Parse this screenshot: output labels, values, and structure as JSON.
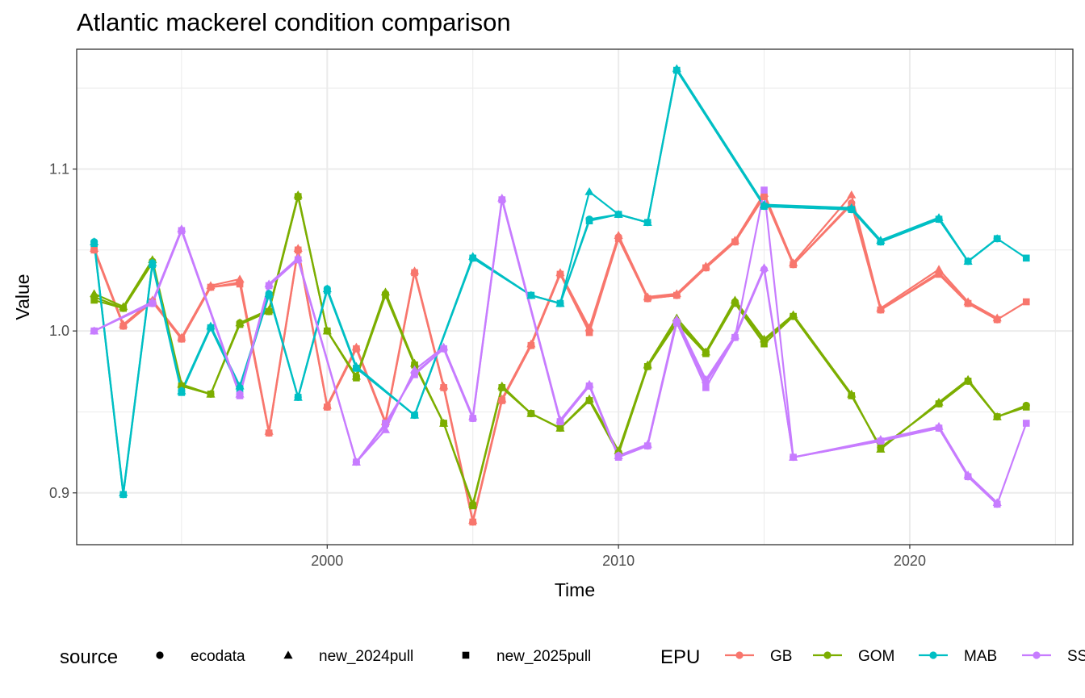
{
  "chart_data": {
    "type": "line",
    "title": "Atlantic mackerel condition comparison",
    "xlabel": "Time",
    "ylabel": "Value",
    "xlim": [
      1991.4,
      2025.6
    ],
    "ylim": [
      0.868,
      1.174
    ],
    "x_ticks": [
      2000,
      2010,
      2020
    ],
    "x_tick_labels": [
      "2000",
      "2010",
      "2020"
    ],
    "y_ticks": [
      0.9,
      1.0,
      1.1
    ],
    "y_tick_labels": [
      "0.9",
      "1.0",
      "1.1"
    ],
    "grid": true,
    "legend_position": "bottom",
    "legend_source": {
      "title": "source",
      "entries": [
        {
          "label": "ecodata",
          "shape": "circle"
        },
        {
          "label": "new_2024pull",
          "shape": "triangle"
        },
        {
          "label": "new_2025pull",
          "shape": "square"
        }
      ]
    },
    "legend_epu": {
      "title": "EPU",
      "entries": [
        {
          "label": "GB",
          "color": "#F8766D"
        },
        {
          "label": "GOM",
          "color": "#7CAE00"
        },
        {
          "label": "MAB",
          "color": "#00BFC4"
        },
        {
          "label": "SS",
          "color": "#C77CFF"
        }
      ]
    },
    "series": [
      {
        "name": "GB",
        "source": "ecodata",
        "color": "#F8766D",
        "shape": "circle",
        "x": [
          1992,
          1993,
          1994,
          1995,
          1996,
          1997,
          1998,
          1999,
          2000,
          2001,
          2002,
          2003,
          2004,
          2005,
          2006,
          2007,
          2008,
          2009,
          2010,
          2011,
          2012,
          2013,
          2014,
          2015,
          2016,
          2018,
          2019,
          2021,
          2022,
          2023
        ],
        "y": [
          1.05,
          1.003,
          1.018,
          0.995,
          1.027,
          1.03,
          0.937,
          1.05,
          0.953,
          0.989,
          0.943,
          1.036,
          0.965,
          0.882,
          0.957,
          0.991,
          1.035,
          1.0,
          1.058,
          1.02,
          1.022,
          1.039,
          1.055,
          1.083,
          1.041,
          1.079,
          1.013,
          1.036,
          1.017,
          1.007
        ]
      },
      {
        "name": "GB",
        "source": "new_2024pull",
        "color": "#F8766D",
        "shape": "triangle",
        "x": [
          1992,
          1993,
          1994,
          1995,
          1996,
          1997,
          1998,
          1999,
          2000,
          2001,
          2002,
          2003,
          2004,
          2005,
          2006,
          2007,
          2008,
          2009,
          2010,
          2011,
          2012,
          2013,
          2014,
          2015,
          2016,
          2018,
          2019,
          2021,
          2022,
          2023
        ],
        "y": [
          1.051,
          1.004,
          1.019,
          0.996,
          1.028,
          1.032,
          0.938,
          1.051,
          0.954,
          0.99,
          0.944,
          1.037,
          0.966,
          0.883,
          0.958,
          0.992,
          1.036,
          1.002,
          1.059,
          1.021,
          1.023,
          1.04,
          1.056,
          1.085,
          1.042,
          1.084,
          1.014,
          1.038,
          1.018,
          1.008
        ]
      },
      {
        "name": "GB",
        "source": "new_2025pull",
        "color": "#F8766D",
        "shape": "square",
        "x": [
          1992,
          1993,
          1994,
          1995,
          1996,
          1997,
          1998,
          1999,
          2000,
          2001,
          2002,
          2003,
          2004,
          2005,
          2006,
          2007,
          2008,
          2009,
          2010,
          2011,
          2012,
          2013,
          2014,
          2015,
          2016,
          2018,
          2019,
          2021,
          2022,
          2023,
          2024
        ],
        "y": [
          1.05,
          1.003,
          1.018,
          0.995,
          1.027,
          1.029,
          0.937,
          1.05,
          0.953,
          0.989,
          0.943,
          1.036,
          0.965,
          0.882,
          0.957,
          0.991,
          1.035,
          0.999,
          1.057,
          1.02,
          1.022,
          1.039,
          1.055,
          1.083,
          1.041,
          1.078,
          1.013,
          1.035,
          1.017,
          1.007,
          1.018
        ]
      },
      {
        "name": "GOM",
        "source": "ecodata",
        "color": "#7CAE00",
        "shape": "circle",
        "x": [
          1992,
          1993,
          1994,
          1995,
          1996,
          1997,
          1998,
          1999,
          2000,
          2001,
          2002,
          2003,
          2004,
          2005,
          2006,
          2007,
          2008,
          2009,
          2010,
          2011,
          2012,
          2013,
          2014,
          2015,
          2016,
          2018,
          2019,
          2021,
          2022,
          2023,
          2024
        ],
        "y": [
          1.021,
          1.014,
          1.043,
          0.966,
          0.961,
          1.005,
          1.012,
          1.083,
          1.0,
          0.972,
          1.023,
          0.979,
          0.943,
          0.893,
          0.965,
          0.949,
          0.94,
          0.957,
          0.925,
          0.978,
          1.006,
          0.987,
          1.018,
          0.994,
          1.009,
          0.96,
          0.928,
          0.955,
          0.969,
          0.947,
          0.954
        ]
      },
      {
        "name": "GOM",
        "source": "new_2024pull",
        "color": "#7CAE00",
        "shape": "triangle",
        "x": [
          1992,
          1993,
          1994,
          1995,
          1996,
          1997,
          1998,
          1999,
          2000,
          2001,
          2002,
          2003,
          2004,
          2005,
          2006,
          2007,
          2008,
          2009,
          2010,
          2011,
          2012,
          2013,
          2014,
          2015,
          2016,
          2018,
          2019,
          2021,
          2022,
          2023
        ],
        "y": [
          1.023,
          1.015,
          1.044,
          0.967,
          0.961,
          1.005,
          1.013,
          1.084,
          1.0,
          0.972,
          1.024,
          0.98,
          0.943,
          0.893,
          0.966,
          0.949,
          0.94,
          0.958,
          0.926,
          0.979,
          1.008,
          0.987,
          1.019,
          0.995,
          1.01,
          0.961,
          0.927,
          0.956,
          0.97,
          0.947
        ]
      },
      {
        "name": "GOM",
        "source": "new_2025pull",
        "color": "#7CAE00",
        "shape": "square",
        "x": [
          1992,
          1993,
          1994,
          1995,
          1996,
          1997,
          1998,
          1999,
          2000,
          2001,
          2002,
          2003,
          2004,
          2005,
          2006,
          2007,
          2008,
          2009,
          2010,
          2011,
          2012,
          2013,
          2014,
          2015,
          2016,
          2018,
          2019,
          2021,
          2022,
          2023,
          2024
        ],
        "y": [
          1.019,
          1.014,
          1.042,
          0.966,
          0.961,
          1.004,
          1.012,
          1.083,
          1.0,
          0.971,
          1.022,
          0.979,
          0.943,
          0.892,
          0.965,
          0.949,
          0.94,
          0.957,
          0.924,
          0.978,
          1.005,
          0.986,
          1.017,
          0.992,
          1.009,
          0.96,
          0.928,
          0.955,
          0.969,
          0.947,
          0.953
        ]
      },
      {
        "name": "MAB",
        "source": "ecodata",
        "color": "#00BFC4",
        "shape": "circle",
        "x": [
          1992,
          1993,
          1994,
          1995,
          1996,
          1997,
          1998,
          1999,
          2000,
          2001,
          2003,
          2005,
          2007,
          2008,
          2009,
          2010,
          2011,
          2012,
          2015,
          2018,
          2019,
          2021,
          2022,
          2023
        ],
        "y": [
          1.055,
          0.899,
          1.042,
          0.963,
          1.002,
          0.965,
          1.023,
          0.959,
          1.026,
          0.977,
          0.948,
          1.045,
          1.022,
          1.017,
          1.069,
          1.072,
          1.067,
          1.161,
          1.077,
          1.075,
          1.055,
          1.069,
          1.043,
          1.057
        ]
      },
      {
        "name": "MAB",
        "source": "new_2024pull",
        "color": "#00BFC4",
        "shape": "triangle",
        "x": [
          1992,
          1993,
          1994,
          1995,
          1996,
          1997,
          1998,
          1999,
          2000,
          2001,
          2003,
          2005,
          2007,
          2008,
          2009,
          2010,
          2011,
          2012,
          2015,
          2018,
          2019,
          2021,
          2022,
          2023
        ],
        "y": [
          1.055,
          0.9,
          1.042,
          0.963,
          1.003,
          0.966,
          1.023,
          0.959,
          1.026,
          0.978,
          0.948,
          1.046,
          1.022,
          1.017,
          1.086,
          1.072,
          1.067,
          1.162,
          1.078,
          1.076,
          1.056,
          1.07,
          1.043,
          1.057
        ]
      },
      {
        "name": "MAB",
        "source": "new_2025pull",
        "color": "#00BFC4",
        "shape": "square",
        "x": [
          1992,
          1993,
          1994,
          1995,
          1996,
          1997,
          1998,
          1999,
          2000,
          2001,
          2003,
          2005,
          2007,
          2008,
          2009,
          2010,
          2011,
          2012,
          2015,
          2018,
          2019,
          2021,
          2022,
          2023,
          2024
        ],
        "y": [
          1.054,
          0.899,
          1.041,
          0.962,
          1.002,
          0.964,
          1.022,
          0.959,
          1.025,
          0.977,
          0.948,
          1.045,
          1.022,
          1.017,
          1.068,
          1.072,
          1.067,
          1.161,
          1.077,
          1.075,
          1.055,
          1.069,
          1.043,
          1.057,
          1.045
        ]
      },
      {
        "name": "SS",
        "source": "ecodata",
        "color": "#C77CFF",
        "shape": "circle",
        "x": [
          1992,
          1994,
          1995,
          1997,
          1998,
          1999,
          2001,
          2002,
          2003,
          2004,
          2005,
          2006,
          2008,
          2009,
          2010,
          2011,
          2012,
          2013,
          2014,
          2015,
          2016,
          2019,
          2021,
          2022,
          2023
        ],
        "y": [
          1.0,
          1.017,
          1.062,
          0.961,
          1.028,
          1.044,
          0.919,
          0.942,
          0.974,
          0.989,
          0.946,
          1.081,
          0.944,
          0.966,
          0.923,
          0.929,
          1.006,
          0.968,
          0.996,
          1.038,
          0.922,
          0.932,
          0.94,
          0.91,
          0.893
        ]
      },
      {
        "name": "SS",
        "source": "new_2024pull",
        "color": "#C77CFF",
        "shape": "triangle",
        "x": [
          1992,
          1994,
          1995,
          1997,
          1998,
          1999,
          2001,
          2002,
          2003,
          2004,
          2005,
          2006,
          2008,
          2009,
          2010,
          2011,
          2012,
          2013,
          2014,
          2015,
          2016,
          2019,
          2021,
          2022,
          2023
        ],
        "y": [
          1.0,
          1.018,
          1.063,
          0.961,
          1.029,
          1.045,
          0.919,
          0.939,
          0.976,
          0.99,
          0.947,
          1.082,
          0.945,
          0.967,
          0.923,
          0.93,
          1.007,
          0.97,
          0.997,
          1.039,
          0.922,
          0.933,
          0.941,
          0.911,
          0.894
        ]
      },
      {
        "name": "SS",
        "source": "new_2025pull",
        "color": "#C77CFF",
        "shape": "square",
        "x": [
          1992,
          1994,
          1995,
          1997,
          1998,
          1999,
          2001,
          2002,
          2003,
          2004,
          2005,
          2006,
          2008,
          2009,
          2010,
          2011,
          2012,
          2013,
          2014,
          2015,
          2016,
          2019,
          2021,
          2022,
          2023,
          2024
        ],
        "y": [
          1.0,
          1.017,
          1.062,
          0.96,
          1.028,
          1.044,
          0.919,
          0.943,
          0.973,
          0.989,
          0.946,
          1.081,
          0.944,
          0.966,
          0.922,
          0.929,
          1.005,
          0.965,
          0.996,
          1.087,
          0.922,
          0.932,
          0.94,
          0.91,
          0.893,
          0.943
        ]
      }
    ]
  }
}
